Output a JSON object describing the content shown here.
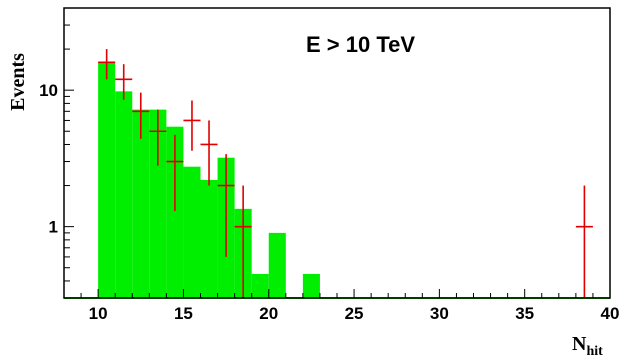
{
  "chart_data": {
    "type": "bar",
    "annotation": "E > 10 TeV",
    "ylabel": "Events",
    "xlabel": "N",
    "xlabel_sub": "hit",
    "xlim": [
      8,
      40
    ],
    "ylim": [
      0.3,
      40
    ],
    "yscale": "log",
    "grid": false,
    "x_ticks": [
      10,
      15,
      20,
      25,
      30,
      35,
      40
    ],
    "y_ticks": [
      {
        "value": 1,
        "label": "1"
      },
      {
        "value": 10,
        "label": "10"
      }
    ],
    "colors": {
      "histogram": "#00ee00",
      "data_points": "#e00000"
    },
    "series": [
      {
        "kind": "histogram",
        "bin_width": 1,
        "bins": [
          {
            "x_low": 10,
            "value": 16
          },
          {
            "x_low": 11,
            "value": 9.8
          },
          {
            "x_low": 12,
            "value": 7.2
          },
          {
            "x_low": 13,
            "value": 7.2
          },
          {
            "x_low": 14,
            "value": 5.4
          },
          {
            "x_low": 15,
            "value": 2.75
          },
          {
            "x_low": 16,
            "value": 2.2
          },
          {
            "x_low": 17,
            "value": 3.2
          },
          {
            "x_low": 18,
            "value": 1.35
          },
          {
            "x_low": 19,
            "value": 0.45
          },
          {
            "x_low": 20,
            "value": 0.9
          },
          {
            "x_low": 22,
            "value": 0.45
          }
        ]
      },
      {
        "kind": "points",
        "points": [
          {
            "x": 10.5,
            "y": 16,
            "yerr_low": 12,
            "yerr_high": 20
          },
          {
            "x": 11.5,
            "y": 12,
            "yerr_low": 8.5,
            "yerr_high": 15.5
          },
          {
            "x": 12.5,
            "y": 7,
            "yerr_low": 4.4,
            "yerr_high": 9.6
          },
          {
            "x": 13.5,
            "y": 5,
            "yerr_low": 2.8,
            "yerr_high": 7.2
          },
          {
            "x": 14.5,
            "y": 3,
            "yerr_low": 1.3,
            "yerr_high": 4.7
          },
          {
            "x": 15.5,
            "y": 6,
            "yerr_low": 3.6,
            "yerr_high": 8.4
          },
          {
            "x": 16.5,
            "y": 4,
            "yerr_low": 2,
            "yerr_high": 6
          },
          {
            "x": 17.5,
            "y": 2,
            "yerr_low": 0.6,
            "yerr_high": 3.4
          },
          {
            "x": 18.5,
            "y": 1,
            "yerr_low": 0.3,
            "yerr_high": 2
          },
          {
            "x": 38.5,
            "y": 1,
            "yerr_low": 0.3,
            "yerr_high": 2
          }
        ]
      }
    ]
  }
}
